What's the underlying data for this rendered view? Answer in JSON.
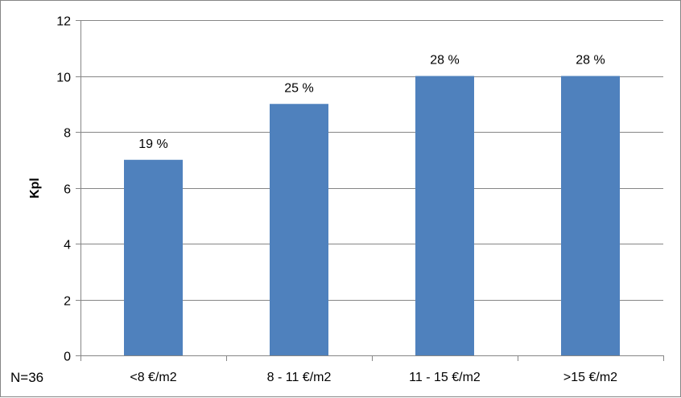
{
  "chart_data": {
    "type": "bar",
    "categories": [
      "<8 €/m2",
      "8 - 11 €/m2",
      "11 - 15 €/m2",
      ">15 €/m2"
    ],
    "values": [
      7,
      9,
      10,
      10
    ],
    "data_labels": [
      "19 %",
      "25 %",
      "28 %",
      "28 %"
    ],
    "title": "",
    "xlabel": "",
    "ylabel": "Kpl",
    "ylim": [
      0,
      12
    ],
    "yticks": [
      0,
      2,
      4,
      6,
      8,
      10,
      12
    ],
    "grid": true,
    "legend": "none",
    "bar_color": "#4F81BD",
    "grid_color": "#868686"
  },
  "note": "N=36"
}
